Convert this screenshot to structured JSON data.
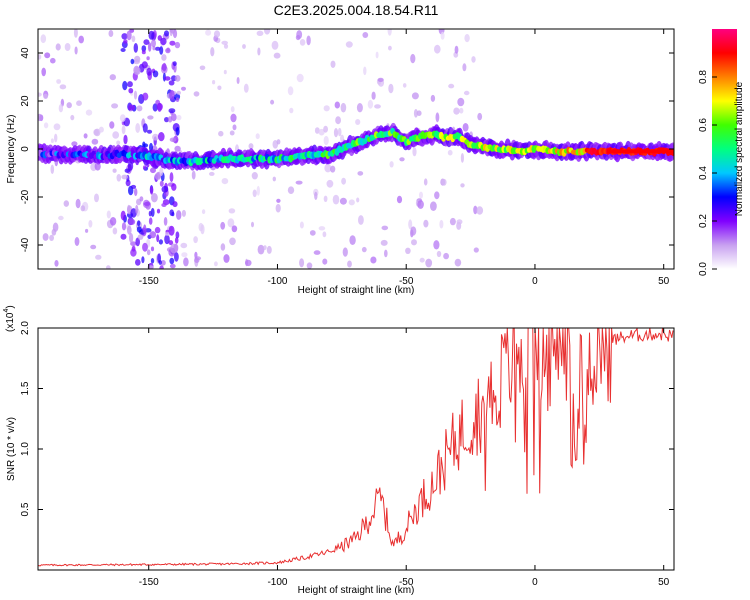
{
  "figure": {
    "title": "C2E3.2025.004.18.54.R11"
  },
  "chart_data": [
    {
      "type": "heatmap",
      "title": "C2E3.2025.004.18.54.R11",
      "xlabel": "Height of straight line (km)",
      "ylabel": "Frequency (Hz)",
      "xlim": [
        -193,
        54
      ],
      "ylim": [
        -50,
        50
      ],
      "xticks": [
        -150,
        -100,
        -50,
        0,
        50
      ],
      "yticks": [
        -40,
        -20,
        0,
        20,
        40
      ],
      "colorbar": {
        "label": "Normalized spectral amplitude",
        "range": [
          0,
          1
        ],
        "ticks": [
          0.0,
          0.2,
          0.4,
          0.6,
          0.8
        ],
        "tick_labels": [
          "0.0",
          "0.2",
          "0.4",
          "0.6",
          "0.8"
        ],
        "colormap": [
          "#ffffff",
          "#c8a0f0",
          "#8000ff",
          "#0000ff",
          "#00c8ff",
          "#00ff80",
          "#40ff00",
          "#ffff00",
          "#ff8000",
          "#ff0000",
          "#ff0080"
        ]
      },
      "signal_ridge": {
        "x": [
          -193,
          -180,
          -170,
          -160,
          -150,
          -140,
          -130,
          -120,
          -110,
          -100,
          -90,
          -80,
          -75,
          -70,
          -65,
          -60,
          -55,
          -50,
          -45,
          -40,
          -35,
          -30,
          -25,
          -20,
          -15,
          -10,
          -5,
          0,
          10,
          20,
          30,
          40,
          54
        ],
        "y": [
          -2,
          -2,
          -3,
          -2,
          -3,
          -5,
          -5,
          -4,
          -4,
          -4,
          -3,
          -2,
          0,
          2,
          4,
          6,
          7,
          3,
          5,
          6,
          5,
          5,
          2,
          1,
          0,
          0,
          -1,
          0,
          -1,
          -1,
          -1,
          -1,
          -1
        ]
      },
      "noisy_band_x": [
        -160,
        -138
      ]
    },
    {
      "type": "line",
      "xlabel": "Height of straight line (km)",
      "ylabel": "SNR (10 * v/v)",
      "y_multiplier": "(x10",
      "y_multiplier_exp": "4",
      "xlim": [
        -193,
        54
      ],
      "ylim": [
        0,
        20000
      ],
      "xticks": [
        -150,
        -100,
        -50,
        0,
        50
      ],
      "yticks": [
        5000,
        10000,
        15000,
        20000
      ],
      "ytick_labels": [
        "0.5",
        "1.0",
        "1.5",
        "2.0"
      ],
      "color": "#e83030",
      "envelope": {
        "x": [
          -193,
          -150,
          -120,
          -100,
          -90,
          -80,
          -70,
          -65,
          -60,
          -55,
          -50,
          -45,
          -40,
          -35,
          -30,
          -25,
          -20,
          -15,
          -10,
          -5,
          0,
          5,
          10,
          15,
          20,
          25,
          30,
          35,
          40,
          45,
          50,
          54
        ],
        "y": [
          400,
          450,
          500,
          600,
          1000,
          1500,
          2500,
          4000,
          6000,
          2000,
          3500,
          5500,
          7000,
          9000,
          11000,
          12500,
          13500,
          15000,
          17000,
          18000,
          19000,
          19500,
          19000,
          17000,
          18000,
          18500,
          19000,
          19300,
          19400,
          19500,
          19500,
          19300
        ]
      }
    }
  ]
}
